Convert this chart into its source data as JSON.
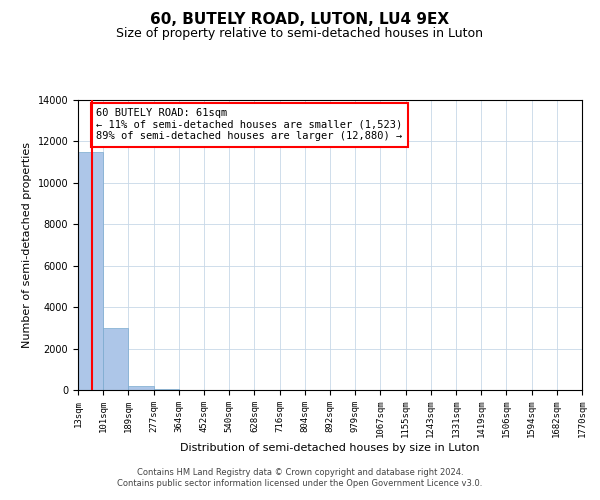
{
  "title": "60, BUTELY ROAD, LUTON, LU4 9EX",
  "subtitle": "Size of property relative to semi-detached houses in Luton",
  "xlabel": "Distribution of semi-detached houses by size in Luton",
  "ylabel": "Number of semi-detached properties",
  "bin_edges": [
    13,
    101,
    189,
    277,
    364,
    452,
    540,
    628,
    716,
    804,
    892,
    979,
    1067,
    1155,
    1243,
    1331,
    1419,
    1506,
    1594,
    1682,
    1770
  ],
  "bin_counts": [
    11500,
    3000,
    200,
    50,
    20,
    10,
    8,
    6,
    5,
    4,
    4,
    3,
    3,
    3,
    2,
    2,
    2,
    2,
    1,
    1
  ],
  "bar_color": "#adc6e8",
  "bar_edge_color": "#7aaace",
  "property_value": 61,
  "property_label": "60 BUTELY ROAD: 61sqm",
  "pct_smaller": 11,
  "count_smaller": 1523,
  "pct_larger": 89,
  "count_larger": 12880,
  "vline_color": "red",
  "ylim": [
    0,
    14000
  ],
  "grid_color": "#c8d8e8",
  "footer_line1": "Contains HM Land Registry data © Crown copyright and database right 2024.",
  "footer_line2": "Contains public sector information licensed under the Open Government Licence v3.0.",
  "title_fontsize": 11,
  "subtitle_fontsize": 9,
  "xlabel_fontsize": 8,
  "ylabel_fontsize": 8,
  "tick_fontsize": 6.5,
  "annotation_fontsize": 7.5,
  "footer_fontsize": 6,
  "tick_labels": [
    "13sqm",
    "101sqm",
    "189sqm",
    "277sqm",
    "364sqm",
    "452sqm",
    "540sqm",
    "628sqm",
    "716sqm",
    "804sqm",
    "892sqm",
    "979sqm",
    "1067sqm",
    "1155sqm",
    "1243sqm",
    "1331sqm",
    "1419sqm",
    "1506sqm",
    "1594sqm",
    "1682sqm",
    "1770sqm"
  ]
}
